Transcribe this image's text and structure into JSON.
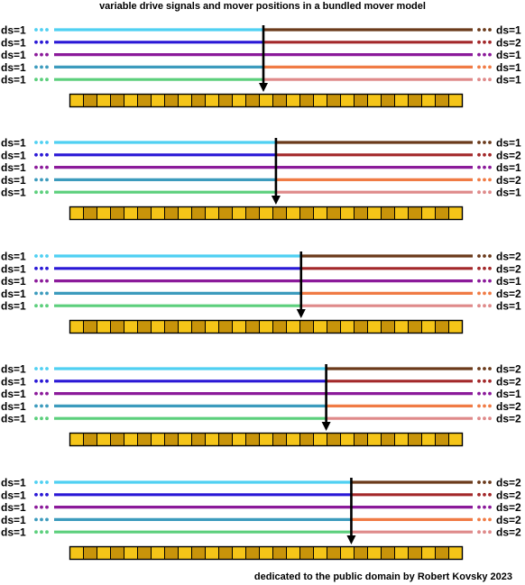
{
  "title": "variable drive signals and mover positions in a bundled mover model",
  "footer": "dedicated to the public domain by Robert Kovsky 2023",
  "colors": {
    "left_lines": [
      "#4fd0f2",
      "#2a18d6",
      "#8b1a9a",
      "#3c9bbd",
      "#5ccf7c"
    ],
    "right_lines": [
      "#6b3a1b",
      "#a3282a",
      "#8b1a9a",
      "#f07b45",
      "#df8a8a"
    ],
    "tile_dark": "#c8940a",
    "tile_light": "#f5c518",
    "pointer": "#000000"
  },
  "panels": [
    {
      "left": [
        "ds=1",
        "ds=1",
        "ds=1",
        "ds=1",
        "ds=1"
      ],
      "right": [
        "ds=1",
        "ds=2",
        "ds=1",
        "ds=1",
        "ds=1"
      ],
      "position": 0.5
    },
    {
      "left": [
        "ds=1",
        "ds=1",
        "ds=1",
        "ds=1",
        "ds=1"
      ],
      "right": [
        "ds=1",
        "ds=2",
        "ds=1",
        "ds=2",
        "ds=1"
      ],
      "position": 0.53
    },
    {
      "left": [
        "ds=1",
        "ds=1",
        "ds=1",
        "ds=1",
        "ds=1"
      ],
      "right": [
        "ds=2",
        "ds=2",
        "ds=1",
        "ds=2",
        "ds=1"
      ],
      "position": 0.59
    },
    {
      "left": [
        "ds=1",
        "ds=1",
        "ds=1",
        "ds=1",
        "ds=1"
      ],
      "right": [
        "ds=2",
        "ds=2",
        "ds=1",
        "ds=2",
        "ds=2"
      ],
      "position": 0.65
    },
    {
      "left": [
        "ds=1",
        "ds=1",
        "ds=1",
        "ds=1",
        "ds=1"
      ],
      "right": [
        "ds=2",
        "ds=2",
        "ds=2",
        "ds=2",
        "ds=2"
      ],
      "position": 0.71
    }
  ]
}
